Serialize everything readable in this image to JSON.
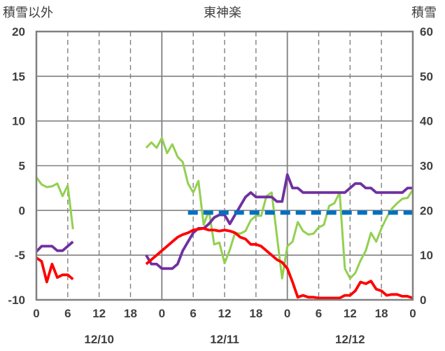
{
  "chart_data": {
    "type": "line",
    "title": "東神楽",
    "left_axis_label": "積雪以外",
    "right_axis_label": "積雪",
    "left_ylim": [
      -10,
      20
    ],
    "left_ticks": [
      "20",
      "15",
      "10",
      "5",
      "0",
      "-5",
      "-10"
    ],
    "right_ylim": [
      0,
      60
    ],
    "right_ticks": [
      "60",
      "50",
      "40",
      "30",
      "20",
      "10",
      "0"
    ],
    "x_unit": "hours since 12/10 00:00",
    "xlim": [
      0,
      72
    ],
    "x_tick_labels": [
      "0",
      "6",
      "12",
      "18",
      "0",
      "6",
      "12",
      "18",
      "0",
      "6",
      "12",
      "18",
      "0"
    ],
    "date_labels": [
      "12/10",
      "12/11",
      "12/12"
    ],
    "grid": true,
    "colors": {
      "temperature": "#ff0000",
      "humidity_like": "#92d050",
      "purple_series": "#7030a0",
      "snow_depth": "#0070c0",
      "axis": "#808080",
      "text": "#404040"
    },
    "series": [
      {
        "color": "#92d050",
        "axis": "left",
        "points": [
          [
            0,
            3.7
          ],
          [
            1,
            2.9
          ],
          [
            2,
            2.6
          ],
          [
            3,
            2.7
          ],
          [
            4,
            3
          ],
          [
            5,
            1.6
          ],
          [
            6,
            2.8
          ],
          [
            7,
            -2.1
          ],
          null,
          [
            21,
            7
          ],
          [
            22,
            7.6
          ],
          [
            23,
            7
          ],
          [
            24,
            8.1
          ],
          [
            25,
            6.4
          ],
          [
            26,
            7.4
          ],
          [
            27,
            6
          ],
          [
            28,
            5.4
          ],
          [
            29,
            3
          ],
          [
            30,
            2
          ],
          [
            31,
            3.3
          ],
          [
            32,
            -1.6
          ],
          [
            33,
            0
          ],
          [
            34,
            -3.8
          ],
          [
            35,
            -3.6
          ],
          [
            36,
            -5.9
          ],
          [
            37,
            -4.4
          ],
          [
            38,
            -2.5
          ],
          [
            39,
            -2.6
          ],
          [
            40,
            -2.3
          ],
          [
            41,
            -1.1
          ],
          [
            42,
            -0.6
          ],
          [
            43,
            -0.6
          ],
          [
            44,
            1.6
          ],
          [
            45,
            2
          ],
          [
            46,
            -2.8
          ],
          [
            47,
            -7.6
          ],
          [
            48,
            -4
          ],
          [
            49,
            -3.5
          ],
          [
            50,
            -1.3
          ],
          [
            51,
            -2.3
          ],
          [
            52,
            -2.7
          ],
          [
            53,
            -2.6
          ],
          [
            54,
            -1.9
          ],
          [
            55,
            -1.6
          ],
          [
            56,
            0.5
          ],
          [
            57,
            0.8
          ],
          [
            58,
            2
          ],
          [
            59,
            -6.5
          ],
          [
            60,
            -7.6
          ],
          [
            61,
            -7
          ],
          [
            62,
            -5.6
          ],
          [
            63,
            -4.5
          ],
          [
            64,
            -2.5
          ],
          [
            65,
            -3.5
          ],
          [
            66,
            -2
          ],
          [
            67,
            -0.8
          ],
          [
            68,
            0.2
          ],
          [
            69,
            0.8
          ],
          [
            70,
            1.3
          ],
          [
            71,
            1.4
          ],
          [
            72,
            2.3
          ]
        ]
      },
      {
        "color": "#7030a0",
        "axis": "left",
        "points": [
          [
            0,
            -4.6
          ],
          [
            1,
            -4
          ],
          [
            2,
            -4
          ],
          [
            3,
            -4
          ],
          [
            4,
            -4.5
          ],
          [
            5,
            -4.5
          ],
          [
            6,
            -4
          ],
          [
            7,
            -3.5
          ],
          null,
          [
            21,
            -5
          ],
          [
            22,
            -6
          ],
          [
            23,
            -6
          ],
          [
            24,
            -6.5
          ],
          [
            25,
            -6.5
          ],
          [
            26,
            -6.5
          ],
          [
            27,
            -6
          ],
          [
            28,
            -4.5
          ],
          [
            29,
            -3.5
          ],
          [
            30,
            -2.5
          ],
          [
            31,
            -2
          ],
          [
            32,
            -2
          ],
          [
            33,
            -1.5
          ],
          [
            34,
            -0.8
          ],
          [
            35,
            -0.5
          ],
          [
            36,
            -0.5
          ],
          [
            37,
            -1.5
          ],
          [
            38,
            -0.5
          ],
          [
            39,
            0.5
          ],
          [
            40,
            1.5
          ],
          [
            41,
            2
          ],
          [
            42,
            1.5
          ],
          [
            43,
            1.5
          ],
          [
            44,
            1.5
          ],
          [
            45,
            1.5
          ],
          [
            46,
            1
          ],
          [
            47,
            1
          ],
          [
            48,
            4
          ],
          [
            49,
            2.5
          ],
          [
            50,
            2.5
          ],
          [
            51,
            2
          ],
          [
            52,
            2
          ],
          [
            53,
            2
          ],
          [
            54,
            2
          ],
          [
            55,
            2
          ],
          [
            56,
            2
          ],
          [
            57,
            2
          ],
          [
            58,
            2
          ],
          [
            59,
            2
          ],
          [
            60,
            2.5
          ],
          [
            61,
            3
          ],
          [
            62,
            3
          ],
          [
            63,
            2.5
          ],
          [
            64,
            2.5
          ],
          [
            65,
            2
          ],
          [
            66,
            2
          ],
          [
            67,
            2
          ],
          [
            68,
            2
          ],
          [
            69,
            2
          ],
          [
            70,
            2
          ],
          [
            71,
            2.5
          ],
          [
            72,
            2.5
          ]
        ]
      },
      {
        "color": "#ff0000",
        "axis": "left",
        "points": [
          [
            0,
            -5.3
          ],
          [
            1,
            -5.7
          ],
          [
            2,
            -8
          ],
          [
            3,
            -6
          ],
          [
            4,
            -7.5
          ],
          [
            5,
            -7.2
          ],
          [
            6,
            -7.2
          ],
          [
            7,
            -7.7
          ],
          null,
          [
            21,
            -6
          ],
          [
            22,
            -5.5
          ],
          [
            23,
            -5
          ],
          [
            24,
            -4.5
          ],
          [
            25,
            -4
          ],
          [
            26,
            -3.5
          ],
          [
            27,
            -3
          ],
          [
            28,
            -2.7
          ],
          [
            29,
            -2.5
          ],
          [
            30,
            -2.2
          ],
          [
            31,
            -2.1
          ],
          [
            32,
            -2
          ],
          [
            33,
            -2.2
          ],
          [
            34,
            -2.2
          ],
          [
            35,
            -2.3
          ],
          [
            36,
            -2.2
          ],
          [
            37,
            -2.3
          ],
          [
            38,
            -2.5
          ],
          [
            39,
            -3
          ],
          [
            40,
            -3.2
          ],
          [
            41,
            -3.8
          ],
          [
            42,
            -3.8
          ],
          [
            43,
            -4
          ],
          [
            44,
            -4.5
          ],
          [
            45,
            -5
          ],
          [
            46,
            -5.5
          ],
          [
            47,
            -5.8
          ],
          [
            48,
            -6.5
          ],
          [
            49,
            -8
          ],
          [
            50,
            -9.7
          ],
          [
            51,
            -9.5
          ],
          [
            52,
            -9.7
          ],
          [
            53,
            -9.7
          ],
          [
            54,
            -9.8
          ],
          [
            55,
            -9.8
          ],
          [
            56,
            -9.8
          ],
          [
            57,
            -9.8
          ],
          [
            58,
            -9.8
          ],
          [
            59,
            -9.5
          ],
          [
            60,
            -9.5
          ],
          [
            61,
            -9
          ],
          [
            62,
            -8
          ],
          [
            63,
            -8.2
          ],
          [
            64,
            -7.9
          ],
          [
            65,
            -8.8
          ],
          [
            66,
            -9
          ],
          [
            67,
            -9.5
          ],
          [
            68,
            -9.4
          ],
          [
            69,
            -9.4
          ],
          [
            70,
            -9.6
          ],
          [
            71,
            -9.6
          ],
          [
            72,
            -9.8
          ]
        ]
      },
      {
        "color": "#0070c0",
        "axis": "right",
        "style": "dashed",
        "points": [
          [
            29,
            19.5
          ],
          [
            31,
            19.5
          ],
          [
            33,
            19.5
          ],
          [
            36,
            19.5
          ],
          [
            38,
            19.5
          ],
          [
            40,
            19.5
          ],
          [
            56,
            19.5
          ],
          [
            58,
            19.5
          ],
          [
            66,
            19.5
          ],
          [
            69,
            19.5
          ],
          [
            72,
            19.5
          ]
        ]
      }
    ]
  }
}
